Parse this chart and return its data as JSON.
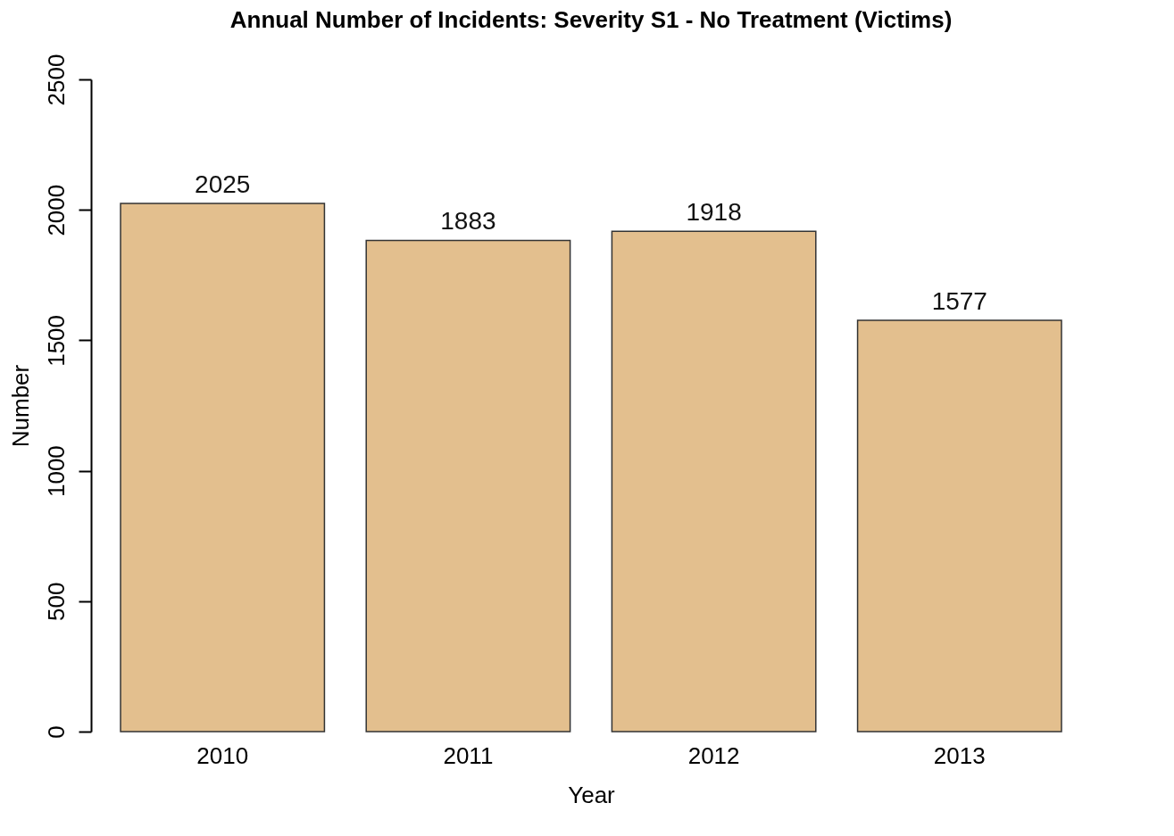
{
  "chart_data": {
    "type": "bar",
    "title": "Annual Number of Incidents: Severity S1 - No Treatment (Victims)",
    "xlabel": "Year",
    "ylabel": "Number",
    "categories": [
      "2010",
      "2011",
      "2012",
      "2013"
    ],
    "values": [
      2025,
      1883,
      1918,
      1577
    ],
    "color": "#e3bf8e",
    "ylim": [
      0,
      2500
    ],
    "yticks": [
      0,
      500,
      1000,
      1500,
      2000,
      2500
    ],
    "grid": false,
    "data_labels": true
  }
}
